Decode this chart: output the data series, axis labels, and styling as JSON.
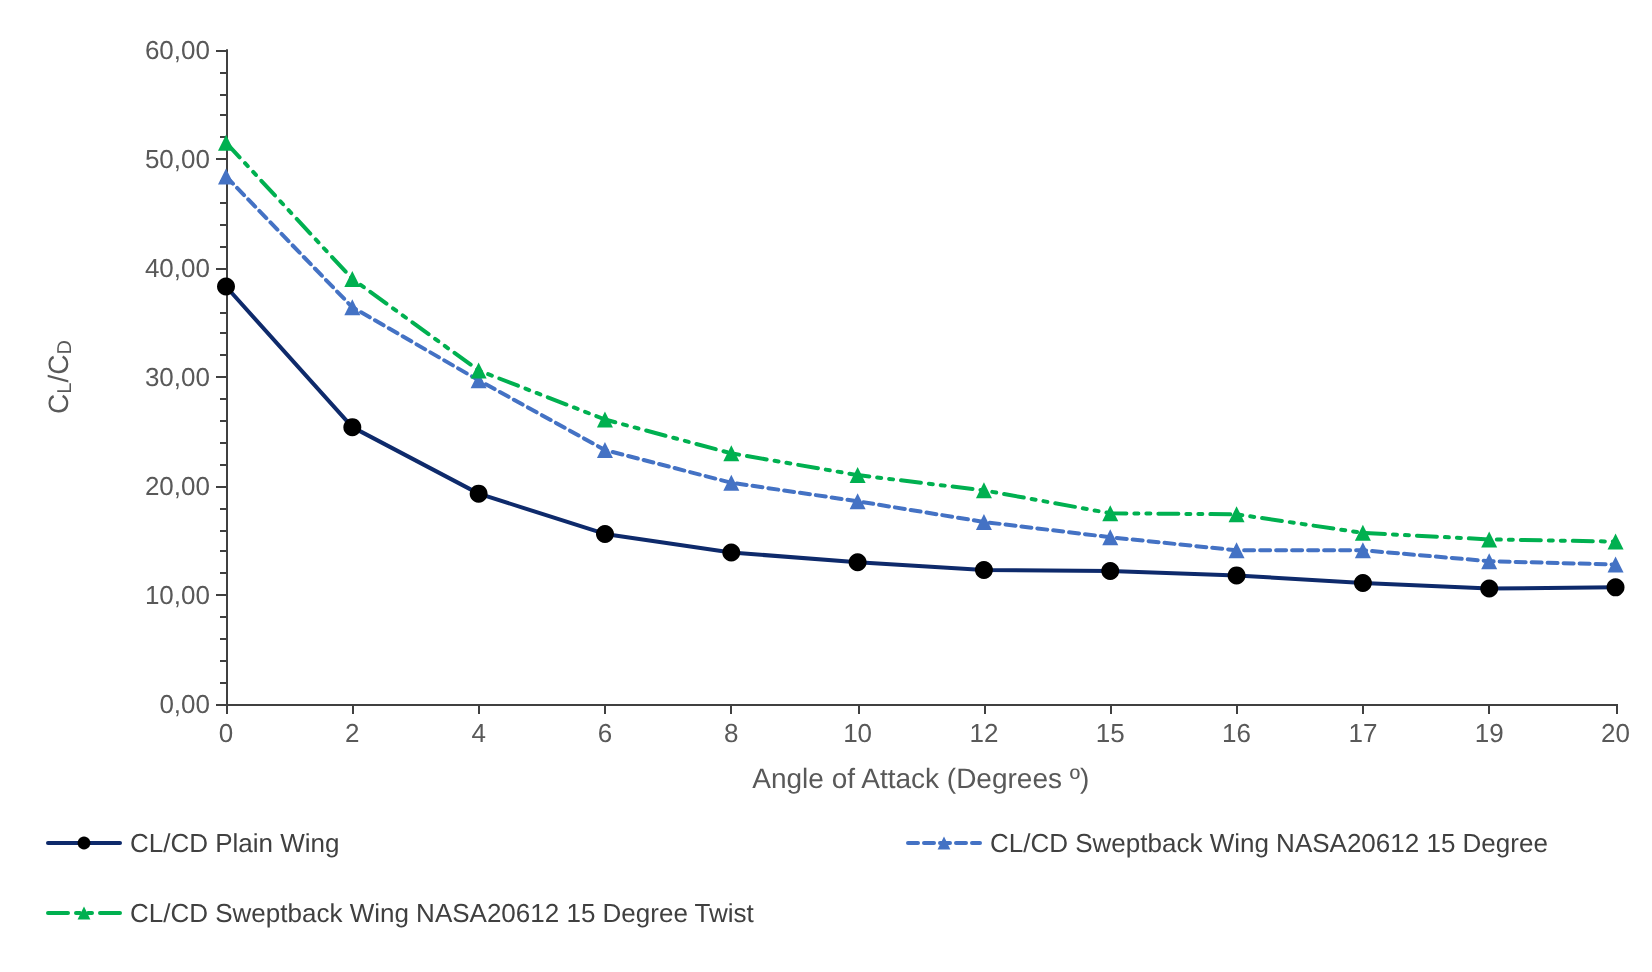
{
  "chart_data": {
    "type": "line",
    "xlabel": "Angle of Attack (Degrees º)",
    "ylabel": "C$_{L}$/C$_{D}$",
    "categories": [
      "0",
      "2",
      "4",
      "6",
      "8",
      "10",
      "12",
      "15",
      "16",
      "17",
      "19",
      "20"
    ],
    "ylim": [
      0,
      60
    ],
    "yticks": [
      {
        "value": 0,
        "label": "0,00"
      },
      {
        "value": 10,
        "label": "10,00"
      },
      {
        "value": 20,
        "label": "20,00"
      },
      {
        "value": 30,
        "label": "30,00"
      },
      {
        "value": 40,
        "label": "40,00"
      },
      {
        "value": 50,
        "label": "50,00"
      },
      {
        "value": 60,
        "label": "60,00"
      }
    ],
    "grid": false,
    "legend": "bottom",
    "series": [
      {
        "name": "CL/CD Plain Wing",
        "color": "#0e2a6b",
        "marker": "circle",
        "line_style": "solid",
        "values": [
          38.3,
          25.4,
          19.3,
          15.6,
          13.9,
          13.0,
          12.3,
          12.2,
          11.8,
          11.1,
          10.6,
          10.7
        ]
      },
      {
        "name": "CL/CD Sweptback Wing NASA20612 15 Degree",
        "color": "#4472c4",
        "marker": "triangle",
        "line_style": "dashed",
        "values": [
          48.4,
          36.4,
          29.7,
          23.3,
          20.3,
          18.6,
          16.7,
          15.3,
          14.1,
          14.1,
          13.1,
          12.8
        ]
      },
      {
        "name": "CL/CD Sweptback Wing NASA20612 15 Degree Twist",
        "color": "#00b050",
        "marker": "triangle",
        "line_style": "dashdot",
        "values": [
          51.5,
          39.0,
          30.6,
          26.1,
          23.0,
          21.0,
          19.6,
          17.5,
          17.4,
          15.7,
          15.1,
          14.9
        ]
      }
    ]
  }
}
